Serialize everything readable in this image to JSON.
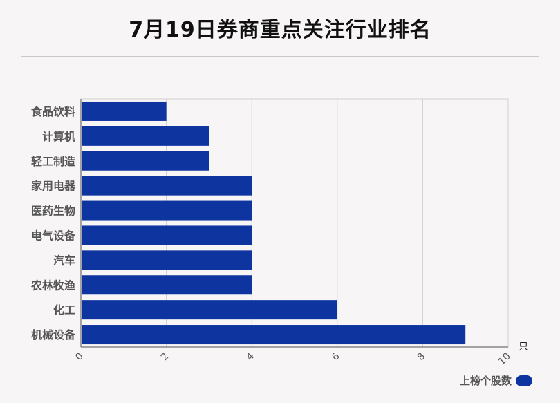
{
  "title": "7月19日券商重点关注行业排名",
  "colors": {
    "bar": "#0e34a0",
    "grid": "#cfcfcf",
    "axis": "#888888",
    "text": "#555555"
  },
  "chart_data": {
    "type": "bar",
    "orientation": "horizontal",
    "title": "7月19日券商重点关注行业排名",
    "categories": [
      "食品饮料",
      "计算机",
      "轻工制造",
      "家用电器",
      "医药生物",
      "电气设备",
      "汽车",
      "农林牧渔",
      "化工",
      "机械设备"
    ],
    "series": [
      {
        "name": "上榜个股数",
        "values": [
          2,
          3,
          3,
          4,
          4,
          4,
          4,
          4,
          6,
          9
        ]
      }
    ],
    "xlim": [
      0,
      10
    ],
    "xticks": [
      "0",
      "2",
      "4",
      "6",
      "8",
      "10"
    ],
    "xunit": "只",
    "grid": true,
    "legend": "bottom-right"
  }
}
